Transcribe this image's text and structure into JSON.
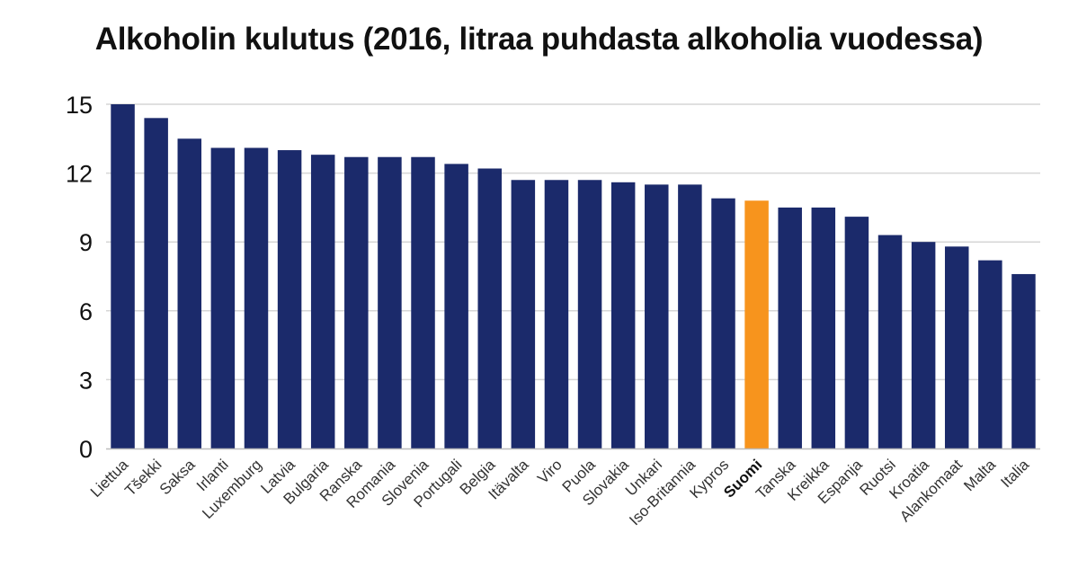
{
  "chart_data": {
    "type": "bar",
    "title": "Alkoholin kulutus (2016, litraa puhdasta alkoholia vuodessa)",
    "xlabel": "",
    "ylabel": "",
    "ylim": [
      0,
      15
    ],
    "yticks": [
      0,
      3,
      6,
      9,
      12,
      15
    ],
    "grid": true,
    "categories": [
      "Liettua",
      "Tšekki",
      "Saksa",
      "Irlanti",
      "Luxemburg",
      "Latvia",
      "Bulgaria",
      "Ranska",
      "Romania",
      "Slovenia",
      "Portugali",
      "Belgia",
      "Itävalta",
      "Viro",
      "Puola",
      "Slovakia",
      "Unkari",
      "Iso-Britannia",
      "Kypros",
      "Suomi",
      "Tanska",
      "Kreikka",
      "Espanja",
      "Ruotsi",
      "Kroatia",
      "Alankomaat",
      "Malta",
      "Italia"
    ],
    "values": [
      15.0,
      14.4,
      13.5,
      13.1,
      13.1,
      13.0,
      12.8,
      12.7,
      12.7,
      12.7,
      12.4,
      12.2,
      11.7,
      11.7,
      11.7,
      11.6,
      11.5,
      11.5,
      10.9,
      10.8,
      10.5,
      10.5,
      10.1,
      9.3,
      9.0,
      8.8,
      8.2,
      7.6
    ],
    "highlight": "Suomi",
    "colors": {
      "bar": "#1b2a6b",
      "highlight": "#f7941d",
      "grid": "#d6d6d6",
      "axis": "#bdbdbd"
    }
  }
}
